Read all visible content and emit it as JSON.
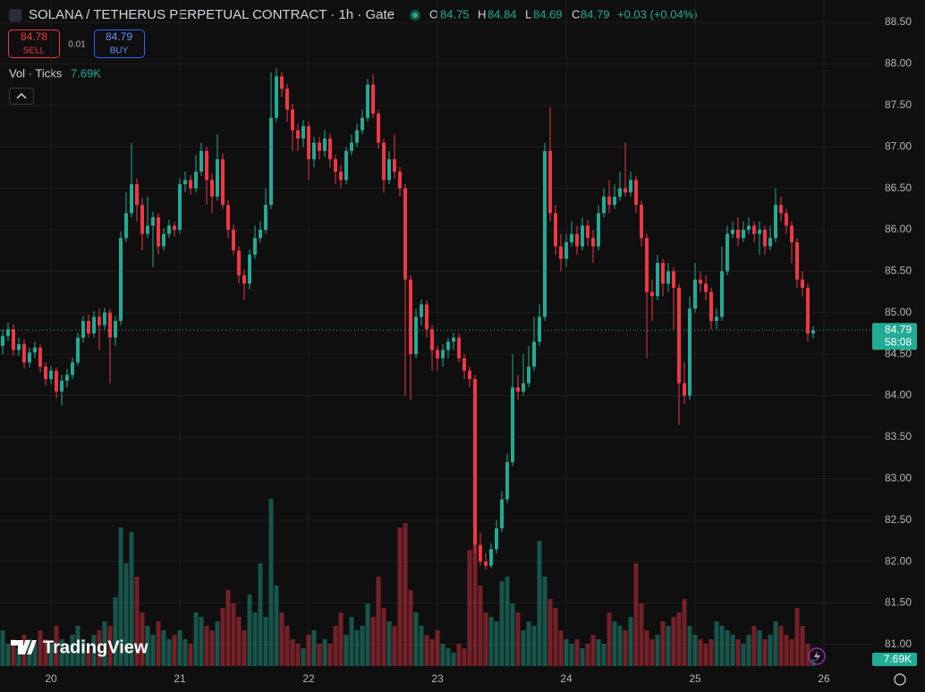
{
  "chart_data": {
    "type": "candlestick",
    "title": "SOLANA / TETHERUS PERPETUAL CONTRACT · 1h · Gate",
    "legend": [
      {
        "label": "O",
        "value": 84.75
      },
      {
        "label": "H",
        "value": 84.84
      },
      {
        "label": "L",
        "value": 84.69
      },
      {
        "label": "C",
        "value": 84.79
      }
    ],
    "change": "+0.03 (+0.04%)",
    "sell": {
      "price": 84.78,
      "label": "SELL"
    },
    "spread": 0.01,
    "buy": {
      "price": 84.79,
      "label": "BUY"
    },
    "volume_title": "Vol · Ticks",
    "volume_label": "7.69K",
    "last_price": 84.79,
    "countdown": "58:08",
    "brand": "TradingView",
    "up_color": "#22ab94",
    "down_color": "#f23645",
    "grid": true,
    "ylim": [
      80.74,
      88.77
    ],
    "yticks": [
      {
        "value": 81,
        "label": "81.00"
      },
      {
        "value": 81.5,
        "label": "81.50"
      },
      {
        "value": 82,
        "label": "82.00"
      },
      {
        "value": 82.5,
        "label": "82.50"
      },
      {
        "value": 83,
        "label": "83.00"
      },
      {
        "value": 83.5,
        "label": "83.50"
      },
      {
        "value": 84,
        "label": "84.00"
      },
      {
        "value": 84.5,
        "label": "84.50"
      },
      {
        "value": 85,
        "label": "85.00"
      },
      {
        "value": 85.5,
        "label": "85.50"
      },
      {
        "value": 86,
        "label": "86.00"
      },
      {
        "value": 86.5,
        "label": "86.50"
      },
      {
        "value": 87,
        "label": "87.00"
      },
      {
        "value": 87.5,
        "label": "87.50"
      },
      {
        "value": 88,
        "label": "88.00"
      },
      {
        "value": 88.5,
        "label": "88.50"
      }
    ],
    "categories": [
      null,
      null,
      null,
      null,
      null,
      null,
      null,
      null,
      null,
      "20",
      null,
      null,
      null,
      null,
      null,
      null,
      null,
      null,
      null,
      null,
      null,
      null,
      null,
      null,
      null,
      null,
      null,
      null,
      null,
      null,
      null,
      null,
      null,
      "21",
      null,
      null,
      null,
      null,
      null,
      null,
      null,
      null,
      null,
      null,
      null,
      null,
      null,
      null,
      null,
      null,
      null,
      null,
      null,
      null,
      null,
      null,
      null,
      "22",
      null,
      null,
      null,
      null,
      null,
      null,
      null,
      null,
      null,
      null,
      null,
      null,
      null,
      null,
      null,
      null,
      null,
      null,
      null,
      null,
      null,
      null,
      null,
      "23",
      null,
      null,
      null,
      null,
      null,
      null,
      null,
      null,
      null,
      null,
      null,
      null,
      null,
      null,
      null,
      null,
      null,
      null,
      null,
      null,
      null,
      null,
      null,
      "24",
      null,
      null,
      null,
      null,
      null,
      null,
      null,
      null,
      null,
      null,
      null,
      null,
      null,
      null,
      null,
      null,
      null,
      null,
      null,
      null,
      null,
      null,
      null,
      "25",
      null,
      null,
      null,
      null,
      null,
      null,
      null,
      null,
      null,
      null,
      null,
      null,
      null,
      null,
      null,
      null,
      null,
      null,
      null,
      null,
      null,
      null,
      null,
      "26"
    ],
    "open": [
      84.6,
      84.72,
      84.8,
      84.55,
      84.62,
      84.4,
      84.52,
      84.58,
      84.35,
      84.2,
      84.3,
      84.05,
      84.18,
      84.25,
      84.4,
      84.7,
      84.9,
      84.75,
      84.95,
      84.85,
      85.0,
      84.7,
      84.9,
      85.9,
      86.2,
      86.55,
      86.3,
      85.95,
      86.05,
      86.15,
      85.8,
      85.95,
      86.05,
      86.0,
      86.55,
      86.6,
      86.5,
      86.7,
      86.95,
      86.6,
      86.4,
      86.85,
      86.3,
      86.0,
      85.75,
      85.45,
      85.35,
      85.7,
      85.9,
      86.0,
      86.3,
      87.35,
      87.85,
      87.7,
      87.45,
      87.2,
      87.1,
      87.25,
      86.85,
      87.05,
      86.95,
      87.1,
      86.85,
      86.7,
      86.6,
      86.95,
      87.05,
      87.2,
      87.35,
      87.75,
      87.4,
      87.05,
      86.6,
      86.85,
      86.7,
      86.5,
      85.4,
      84.5,
      84.95,
      85.1,
      84.8,
      84.55,
      84.45,
      84.55,
      84.65,
      84.7,
      84.45,
      84.3,
      84.2,
      82.2,
      82.0,
      81.95,
      82.15,
      82.4,
      82.75,
      83.2,
      84.1,
      84.05,
      84.15,
      84.35,
      84.65,
      84.95,
      86.95,
      86.2,
      85.8,
      85.65,
      85.85,
      85.95,
      85.8,
      86.05,
      85.9,
      85.8,
      86.2,
      86.4,
      86.3,
      86.4,
      86.5,
      86.45,
      86.6,
      86.3,
      85.9,
      85.25,
      85.2,
      85.6,
      85.35,
      85.5,
      85.3,
      84.15,
      84.0,
      85.05,
      85.4,
      85.35,
      85.25,
      84.9,
      84.95,
      85.5,
      85.95,
      86.0,
      85.9,
      86.0,
      86.05,
      85.95,
      86.0,
      85.8,
      85.9,
      86.3,
      86.2,
      86.05,
      85.85,
      85.4,
      85.3,
      84.75,
      null,
      null
    ],
    "high": [
      84.8,
      84.88,
      84.86,
      84.7,
      84.68,
      84.58,
      84.65,
      84.62,
      84.4,
      84.36,
      84.34,
      84.25,
      84.32,
      84.46,
      84.76,
      84.96,
      84.98,
      85.02,
      85.05,
      85.06,
      85.05,
      84.96,
      85.98,
      86.45,
      87.05,
      86.62,
      86.38,
      86.4,
      86.22,
      86.2,
      86.02,
      86.12,
      86.1,
      86.62,
      86.7,
      86.66,
      86.9,
      87.05,
      87.0,
      86.68,
      87.15,
      86.92,
      86.36,
      86.06,
      85.8,
      85.52,
      85.76,
      86.05,
      86.1,
      86.5,
      87.9,
      87.95,
      87.9,
      87.76,
      87.52,
      87.28,
      87.32,
      87.3,
      87.12,
      87.12,
      87.2,
      87.16,
      86.9,
      86.78,
      87.0,
      87.15,
      87.28,
      87.45,
      87.82,
      87.88,
      87.45,
      87.1,
      86.95,
      87.15,
      86.76,
      86.55,
      85.45,
      85.05,
      85.16,
      85.15,
      84.85,
      84.6,
      84.62,
      84.7,
      84.76,
      84.75,
      84.5,
      84.35,
      84.25,
      82.35,
      82.1,
      82.22,
      82.5,
      82.85,
      83.3,
      84.5,
      84.25,
      84.5,
      84.6,
      84.95,
      85.1,
      87.05,
      87.48,
      86.3,
      85.95,
      85.95,
      86.1,
      86.05,
      86.15,
      86.12,
      86.0,
      86.3,
      86.5,
      86.6,
      86.55,
      86.7,
      87.05,
      86.7,
      86.65,
      86.35,
      85.95,
      85.4,
      85.7,
      85.65,
      85.6,
      85.55,
      85.35,
      84.4,
      85.2,
      85.6,
      85.5,
      85.45,
      85.3,
      85.05,
      85.8,
      86.05,
      86.1,
      86.15,
      86.1,
      86.15,
      86.1,
      86.1,
      86.05,
      86.05,
      86.5,
      86.4,
      86.25,
      86.1,
      85.9,
      85.5,
      85.35,
      84.84,
      null,
      null
    ],
    "low": [
      84.5,
      84.66,
      84.48,
      84.48,
      84.33,
      84.34,
      84.45,
      84.28,
      84.12,
      84.14,
      83.97,
      83.88,
      84.1,
      84.2,
      84.36,
      84.64,
      84.7,
      84.7,
      84.55,
      84.8,
      84.15,
      84.6,
      84.85,
      85.85,
      86.15,
      86.1,
      85.75,
      85.9,
      85.55,
      85.7,
      85.75,
      85.9,
      85.92,
      85.95,
      86.45,
      86.42,
      86.45,
      86.65,
      86.3,
      86.2,
      86.35,
      86.25,
      85.9,
      85.7,
      85.35,
      85.15,
      85.28,
      85.65,
      85.85,
      85.95,
      86.25,
      87.3,
      87.6,
      87.3,
      86.95,
      86.95,
      87.0,
      86.6,
      86.75,
      86.85,
      86.88,
      86.75,
      86.55,
      86.5,
      86.55,
      86.9,
      87.0,
      87.15,
      87.3,
      87.35,
      86.98,
      86.45,
      86.55,
      86.62,
      86.4,
      84.0,
      83.95,
      84.45,
      84.85,
      84.7,
      84.3,
      84.3,
      84.35,
      84.45,
      84.55,
      84.4,
      84.2,
      84.1,
      82.1,
      81.95,
      81.9,
      81.92,
      82.1,
      82.35,
      82.7,
      83.15,
      83.95,
      84.0,
      84.1,
      84.3,
      84.6,
      84.9,
      86.1,
      85.7,
      85.5,
      85.55,
      85.8,
      85.7,
      85.75,
      85.8,
      85.6,
      85.75,
      86.15,
      86.2,
      86.25,
      86.35,
      86.4,
      86.4,
      86.2,
      85.8,
      84.45,
      84.9,
      85.15,
      85.2,
      85.25,
      84.8,
      83.65,
      83.9,
      83.95,
      85.0,
      85.25,
      85.15,
      84.8,
      84.8,
      84.9,
      85.45,
      85.9,
      85.8,
      85.85,
      85.95,
      85.85,
      85.7,
      85.7,
      85.75,
      85.85,
      86.1,
      85.95,
      85.6,
      85.3,
      85.2,
      84.65,
      84.69,
      null,
      null
    ],
    "close": [
      84.72,
      84.8,
      84.55,
      84.62,
      84.4,
      84.52,
      84.58,
      84.35,
      84.2,
      84.3,
      84.05,
      84.18,
      84.25,
      84.4,
      84.7,
      84.9,
      84.75,
      84.95,
      84.85,
      85.0,
      84.7,
      84.9,
      85.9,
      86.2,
      86.55,
      86.3,
      85.95,
      86.05,
      86.15,
      85.8,
      85.95,
      86.05,
      86.0,
      86.55,
      86.6,
      86.5,
      86.7,
      86.95,
      86.6,
      86.4,
      86.85,
      86.3,
      86.0,
      85.75,
      85.45,
      85.35,
      85.7,
      85.9,
      86.0,
      86.3,
      87.35,
      87.85,
      87.7,
      87.45,
      87.2,
      87.1,
      87.25,
      86.85,
      87.05,
      86.95,
      87.1,
      86.85,
      86.7,
      86.6,
      86.95,
      87.05,
      87.2,
      87.35,
      87.75,
      87.4,
      87.05,
      86.6,
      86.85,
      86.7,
      86.5,
      85.4,
      84.5,
      84.95,
      85.1,
      84.8,
      84.55,
      84.45,
      84.55,
      84.65,
      84.7,
      84.45,
      84.3,
      84.2,
      82.2,
      82.0,
      81.95,
      82.15,
      82.4,
      82.75,
      83.2,
      84.1,
      84.05,
      84.15,
      84.35,
      84.65,
      84.95,
      86.95,
      86.2,
      85.8,
      85.65,
      85.85,
      85.95,
      85.8,
      86.05,
      85.9,
      85.8,
      86.2,
      86.4,
      86.3,
      86.4,
      86.5,
      86.45,
      86.6,
      86.3,
      85.9,
      85.25,
      85.2,
      85.6,
      85.35,
      85.5,
      85.3,
      84.15,
      84.0,
      85.05,
      85.4,
      85.35,
      85.25,
      84.9,
      84.95,
      85.5,
      85.95,
      86.0,
      85.9,
      86.0,
      86.05,
      85.95,
      86.0,
      85.8,
      85.9,
      86.3,
      86.2,
      86.05,
      85.85,
      85.4,
      85.3,
      84.75,
      84.79,
      null,
      null
    ],
    "volume": [
      40000,
      25000,
      30000,
      20000,
      35000,
      30000,
      25000,
      40000,
      30000,
      25000,
      45000,
      30000,
      25000,
      35000,
      45000,
      30000,
      20000,
      35000,
      40000,
      50000,
      45000,
      77000,
      155000,
      115000,
      150000,
      100000,
      60000,
      45000,
      35000,
      50000,
      40000,
      30000,
      35000,
      40000,
      30000,
      25000,
      60000,
      55000,
      45000,
      40000,
      50000,
      65000,
      85000,
      70000,
      55000,
      40000,
      80000,
      60000,
      115000,
      55000,
      187000,
      90000,
      60000,
      45000,
      30000,
      25000,
      20000,
      35000,
      40000,
      25000,
      30000,
      25000,
      45000,
      60000,
      35000,
      55000,
      40000,
      45000,
      70000,
      55000,
      100000,
      65000,
      50000,
      45000,
      155000,
      160000,
      85000,
      60000,
      45000,
      35000,
      30000,
      40000,
      25000,
      20000,
      15000,
      25000,
      20000,
      130000,
      135000,
      90000,
      60000,
      55000,
      50000,
      95000,
      100000,
      70000,
      60000,
      40000,
      50000,
      45000,
      140000,
      100000,
      75000,
      65000,
      40000,
      30000,
      25000,
      30000,
      20000,
      25000,
      35000,
      30000,
      25000,
      60000,
      50000,
      45000,
      40000,
      55000,
      115000,
      70000,
      40000,
      30000,
      35000,
      50000,
      45000,
      55000,
      60000,
      75000,
      45000,
      35000,
      30000,
      25000,
      30000,
      50000,
      45000,
      40000,
      35000,
      30000,
      25000,
      35000,
      45000,
      40000,
      30000,
      35000,
      50000,
      45000,
      35000,
      30000,
      65000,
      45000,
      25000,
      7690,
      null,
      null
    ]
  }
}
